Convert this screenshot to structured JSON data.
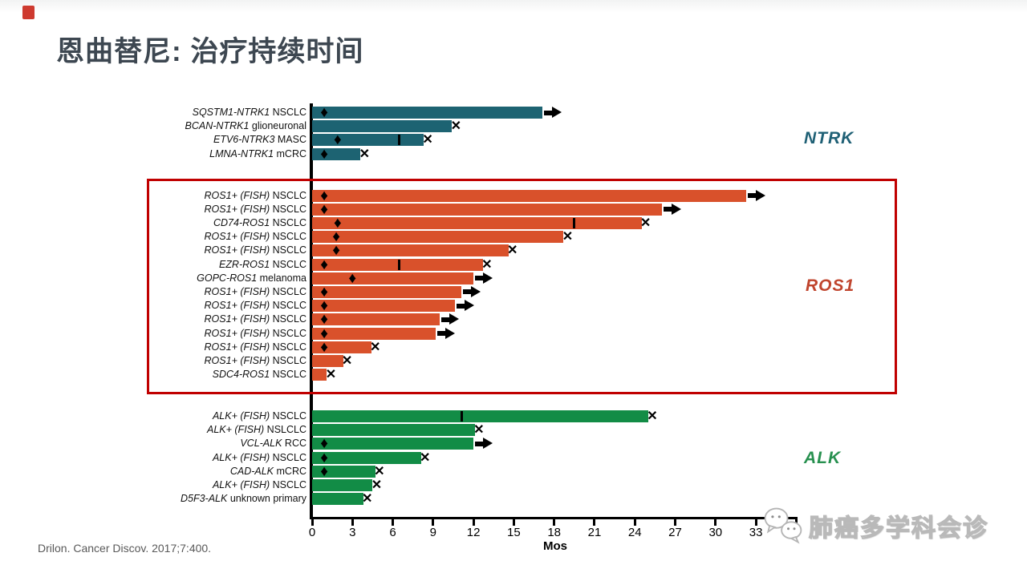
{
  "slide": {
    "title": "恩曲替尼: 治疗持续时间",
    "citation": "Drilon. Cancer Discov. 2017;7:400.",
    "watermark_text": "肺癌多学科会诊"
  },
  "colors": {
    "title": "#3d4751",
    "highlight_box": "#c00000",
    "ntrk_bar": "#1d6372",
    "ros1_bar": "#d9512b",
    "alk_bar": "#128c46",
    "ntrk_label": "#1f6075",
    "ros1_label": "#c0452e",
    "alk_label": "#27904f",
    "marker": "#000000",
    "citation": "#595959"
  },
  "chart_data": {
    "type": "bar",
    "subtype": "swimmer-plot",
    "title": "恩曲替尼: 治疗持续时间 (Entrectinib: duration of treatment)",
    "xlabel": "Mos",
    "x_ticks": [
      0,
      3,
      6,
      9,
      12,
      15,
      18,
      21,
      24,
      27,
      30,
      33
    ],
    "xlim": [
      0,
      36
    ],
    "unit": "months",
    "markers": [
      "diamond-on-bar",
      "vertical-bar-tick",
      "x-at-end",
      "arrow-ongoing"
    ],
    "groups": [
      {
        "name": "NTRK",
        "bar_color": "#1d6372",
        "label_color": "#1f6075",
        "rows": [
          {
            "gene": "SQSTM1-NTRK1",
            "disease": "NSCLC",
            "months": 17.1,
            "diamond": 0.9,
            "bar_tick": null,
            "end": "arrow"
          },
          {
            "gene": "BCAN-NTRK1",
            "disease": "glioneuronal",
            "months": 10.4,
            "diamond": null,
            "bar_tick": null,
            "end": "x"
          },
          {
            "gene": "ETV6-NTRK3",
            "disease": "MASC",
            "months": 8.3,
            "diamond": 1.9,
            "bar_tick": 6.5,
            "end": "x"
          },
          {
            "gene": "LMNA-NTRK1",
            "disease": "mCRC",
            "months": 3.6,
            "diamond": 0.9,
            "bar_tick": null,
            "end": "x"
          }
        ]
      },
      {
        "name": "ROS1",
        "bar_color": "#d9512b",
        "label_color": "#c0452e",
        "rows": [
          {
            "gene": "ROS1+ (FISH)",
            "disease": "NSCLC",
            "months": 32.3,
            "diamond": 0.9,
            "bar_tick": null,
            "end": "arrow"
          },
          {
            "gene": "ROS1+ (FISH)",
            "disease": "NSCLC",
            "months": 26.0,
            "diamond": 0.9,
            "bar_tick": null,
            "end": "arrow"
          },
          {
            "gene": "CD74-ROS1",
            "disease": "NSCLC",
            "months": 24.5,
            "diamond": 1.9,
            "bar_tick": 19.5,
            "end": "x"
          },
          {
            "gene": "ROS1+ (FISH)",
            "disease": "NSCLC",
            "months": 18.7,
            "diamond": 1.8,
            "bar_tick": null,
            "end": "x"
          },
          {
            "gene": "ROS1+ (FISH)",
            "disease": "NSCLC",
            "months": 14.6,
            "diamond": 1.8,
            "bar_tick": null,
            "end": "x"
          },
          {
            "gene": "EZR-ROS1",
            "disease": "NSCLC",
            "months": 12.7,
            "diamond": 0.9,
            "bar_tick": 6.5,
            "end": "x"
          },
          {
            "gene": "GOPC-ROS1",
            "disease": "melanoma",
            "months": 12.0,
            "diamond": 3.0,
            "bar_tick": null,
            "end": "arrow"
          },
          {
            "gene": "ROS1+ (FISH)",
            "disease": "NSCLC",
            "months": 11.1,
            "diamond": 0.9,
            "bar_tick": null,
            "end": "arrow"
          },
          {
            "gene": "ROS1+ (FISH)",
            "disease": "NSCLC",
            "months": 10.6,
            "diamond": 0.9,
            "bar_tick": null,
            "end": "arrow"
          },
          {
            "gene": "ROS1+ (FISH)",
            "disease": "NSCLC",
            "months": 9.5,
            "diamond": 0.9,
            "bar_tick": null,
            "end": "arrow"
          },
          {
            "gene": "ROS1+ (FISH)",
            "disease": "NSCLC",
            "months": 9.2,
            "diamond": 0.9,
            "bar_tick": null,
            "end": "arrow"
          },
          {
            "gene": "ROS1+ (FISH)",
            "disease": "NSCLC",
            "months": 4.4,
            "diamond": 0.9,
            "bar_tick": null,
            "end": "x"
          },
          {
            "gene": "ROS1+ (FISH)",
            "disease": "NSCLC",
            "months": 2.3,
            "diamond": null,
            "bar_tick": null,
            "end": "x"
          },
          {
            "gene": "SDC4-ROS1",
            "disease": "NSCLC",
            "months": 1.1,
            "diamond": null,
            "bar_tick": null,
            "end": "x"
          }
        ]
      },
      {
        "name": "ALK",
        "bar_color": "#128c46",
        "label_color": "#27904f",
        "rows": [
          {
            "gene": "ALK+ (FISH)",
            "disease": "NSCLC",
            "months": 25.0,
            "diamond": null,
            "bar_tick": 11.1,
            "end": "x"
          },
          {
            "gene": "ALK+ (FISH)",
            "disease": "NSLCLC",
            "months": 12.1,
            "diamond": null,
            "bar_tick": null,
            "end": "x"
          },
          {
            "gene": "VCL-ALK",
            "disease": "RCC",
            "months": 12.0,
            "diamond": 0.9,
            "bar_tick": null,
            "end": "arrow"
          },
          {
            "gene": "ALK+ (FISH)",
            "disease": "NSCLC",
            "months": 8.1,
            "diamond": 0.9,
            "bar_tick": null,
            "end": "x"
          },
          {
            "gene": "CAD-ALK",
            "disease": "mCRC",
            "months": 4.7,
            "diamond": 0.9,
            "bar_tick": null,
            "end": "x"
          },
          {
            "gene": "ALK+ (FISH)",
            "disease": "NSCLC",
            "months": 4.5,
            "diamond": null,
            "bar_tick": null,
            "end": "x"
          },
          {
            "gene": "D5F3-ALK",
            "disease": "unknown  primary",
            "months": 3.8,
            "diamond": null,
            "bar_tick": null,
            "end": "x"
          }
        ]
      }
    ]
  }
}
